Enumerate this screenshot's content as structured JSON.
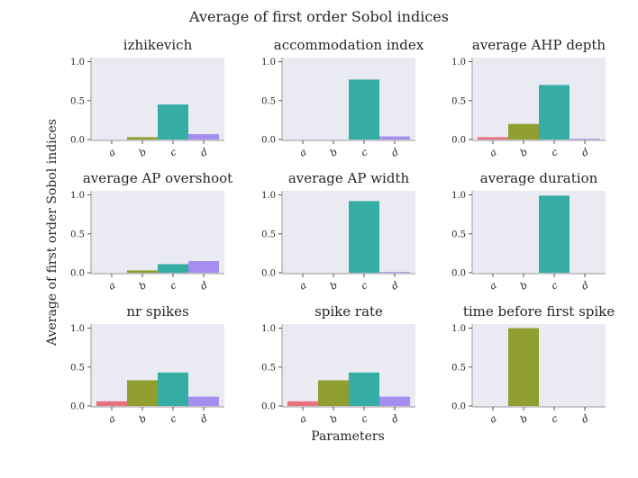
{
  "figure": {
    "title": "Average of first order Sobol indices",
    "ylabel": "Average of first order Sobol indices",
    "xlabel": "Parameters"
  },
  "colors": {
    "a": "#e8707f",
    "b": "#8f9e2e",
    "c": "#35ada4",
    "d": "#a58ef0"
  },
  "chart_data": [
    {
      "type": "bar",
      "title": "izhikevich",
      "categories": [
        "a",
        "b",
        "c",
        "d"
      ],
      "values": [
        0.0,
        0.03,
        0.45,
        0.07
      ],
      "ylim": [
        0,
        1.0
      ],
      "yticks": [
        "0.0",
        "0.5",
        "1.0"
      ]
    },
    {
      "type": "bar",
      "title": "accommodation index",
      "categories": [
        "a",
        "b",
        "c",
        "d"
      ],
      "values": [
        0.0,
        0.0,
        0.77,
        0.04
      ],
      "ylim": [
        0,
        1.0
      ],
      "yticks": [
        "0.0",
        "0.5",
        "1.0"
      ]
    },
    {
      "type": "bar",
      "title": "average AHP depth",
      "categories": [
        "a",
        "b",
        "c",
        "d"
      ],
      "values": [
        0.03,
        0.2,
        0.7,
        0.01
      ],
      "ylim": [
        0,
        1.0
      ],
      "yticks": [
        "0.0",
        "0.5",
        "1.0"
      ]
    },
    {
      "type": "bar",
      "title": "average AP overshoot",
      "categories": [
        "a",
        "b",
        "c",
        "d"
      ],
      "values": [
        0.0,
        0.03,
        0.11,
        0.15
      ],
      "ylim": [
        0,
        1.0
      ],
      "yticks": [
        "0.0",
        "0.5",
        "1.0"
      ]
    },
    {
      "type": "bar",
      "title": "average AP width",
      "categories": [
        "a",
        "b",
        "c",
        "d"
      ],
      "values": [
        0.0,
        0.0,
        0.92,
        0.01
      ],
      "ylim": [
        0,
        1.0
      ],
      "yticks": [
        "0.0",
        "0.5",
        "1.0"
      ]
    },
    {
      "type": "bar",
      "title": "average duration",
      "categories": [
        "a",
        "b",
        "c",
        "d"
      ],
      "values": [
        0.0,
        0.0,
        0.99,
        0.0
      ],
      "ylim": [
        0,
        1.0
      ],
      "yticks": [
        "0.0",
        "0.5",
        "1.0"
      ]
    },
    {
      "type": "bar",
      "title": "nr spikes",
      "categories": [
        "a",
        "b",
        "c",
        "d"
      ],
      "values": [
        0.06,
        0.33,
        0.43,
        0.12
      ],
      "ylim": [
        0,
        1.0
      ],
      "yticks": [
        "0.0",
        "0.5",
        "1.0"
      ]
    },
    {
      "type": "bar",
      "title": "spike rate",
      "categories": [
        "a",
        "b",
        "c",
        "d"
      ],
      "values": [
        0.06,
        0.33,
        0.43,
        0.12
      ],
      "ylim": [
        0,
        1.0
      ],
      "yticks": [
        "0.0",
        "0.5",
        "1.0"
      ]
    },
    {
      "type": "bar",
      "title": "time before first spike",
      "categories": [
        "a",
        "b",
        "c",
        "d"
      ],
      "values": [
        0.0,
        1.0,
        0.0,
        0.0
      ],
      "ylim": [
        0,
        1.0
      ],
      "yticks": [
        "0.0",
        "0.5",
        "1.0"
      ]
    }
  ]
}
